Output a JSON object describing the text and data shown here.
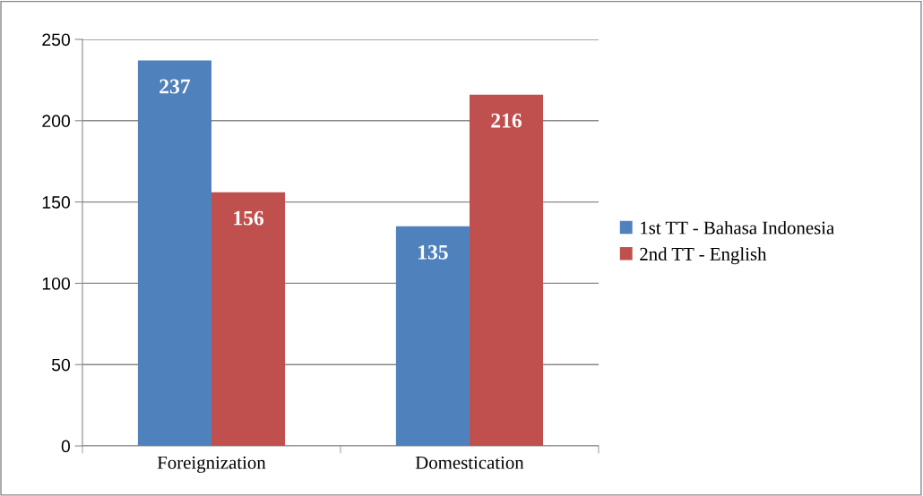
{
  "chart_data": {
    "type": "bar",
    "categories": [
      "Foreignization",
      "Domestication"
    ],
    "series": [
      {
        "name": "1st TT - Bahasa Indonesia",
        "color": "#4f81bd",
        "values": [
          237,
          135
        ]
      },
      {
        "name": "2nd TT - English",
        "color": "#c0504d",
        "values": [
          156,
          216
        ]
      }
    ],
    "ylim": [
      0,
      250
    ],
    "yticks": [
      0,
      50,
      100,
      150,
      200,
      250
    ],
    "grid": "y",
    "legend": "right",
    "data_labels": true
  }
}
